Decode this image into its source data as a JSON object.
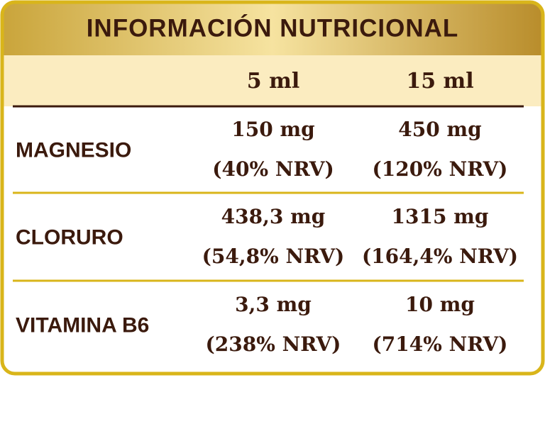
{
  "header": {
    "title": "INFORMACIÓN NUTRICIONAL"
  },
  "table": {
    "columns": [
      "5 ml",
      "15 ml"
    ],
    "rows": [
      {
        "label": "MAGNESIO",
        "cells": [
          [
            "150 mg",
            "(40% NRV)"
          ],
          [
            "450 mg",
            "(120% NRV)"
          ]
        ]
      },
      {
        "label": "CLORURO",
        "cells": [
          [
            "438,3 mg",
            "(54,8% NRV)"
          ],
          [
            "1315 mg",
            "(164,4% NRV)"
          ]
        ]
      },
      {
        "label": "VITAMINA B6",
        "cells": [
          [
            "3,3 mg",
            "(238% NRV)"
          ],
          [
            "10 mg",
            "(714% NRV)"
          ]
        ]
      }
    ]
  }
}
